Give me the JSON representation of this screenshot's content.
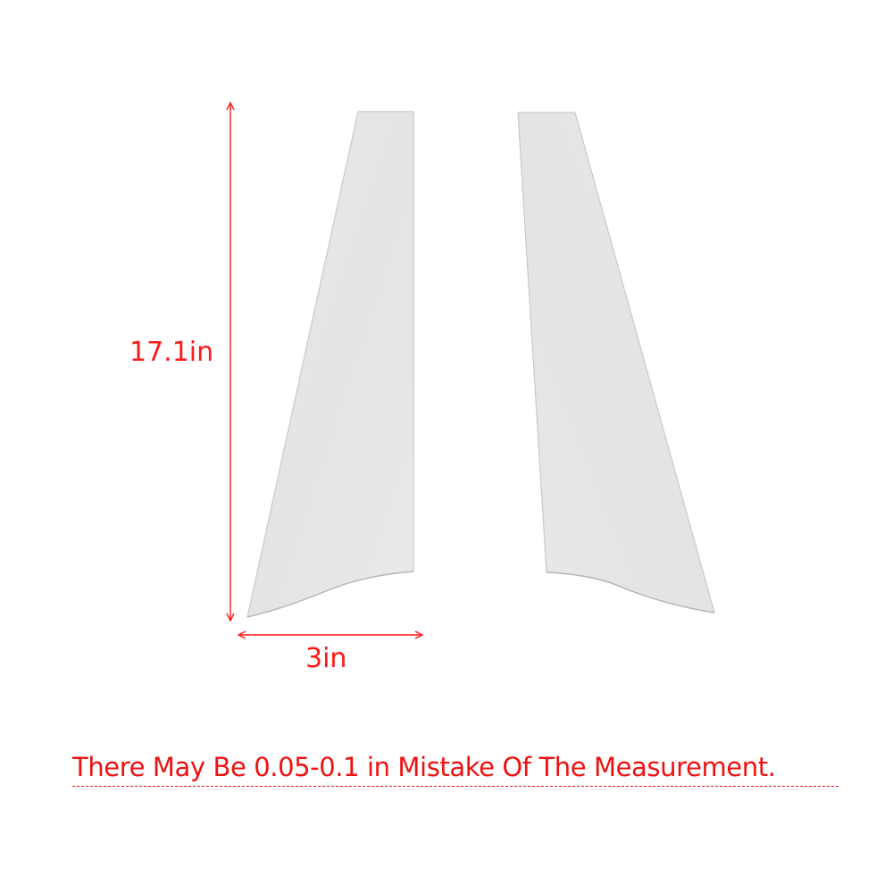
{
  "image": {
    "background": "#ffffff",
    "panel_color": "#e6e6e6",
    "panel_edge_color": "#c8c8c8",
    "dimension_color": "#ff1a1a"
  },
  "dimensions": {
    "height_label": "17.1in",
    "width_label": "3in"
  },
  "note": {
    "text": "There May Be 0.05-0.1 in Mistake Of The Measurement."
  }
}
